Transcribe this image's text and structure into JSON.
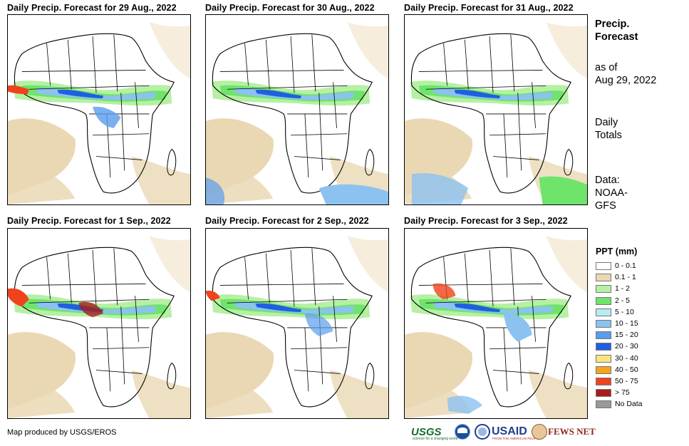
{
  "panels": [
    {
      "title": "Daily Precip. Forecast for 29 Aug., 2022"
    },
    {
      "title": "Daily Precip. Forecast for 30 Aug., 2022"
    },
    {
      "title": "Daily Precip. Forecast for 31 Aug., 2022"
    },
    {
      "title": "Daily Precip. Forecast for 1 Sep., 2022"
    },
    {
      "title": "Daily Precip. Forecast for 2 Sep., 2022"
    },
    {
      "title": "Daily Precip. Forecast for 3 Sep., 2022"
    }
  ],
  "side": {
    "title_line1": "Precip.",
    "title_line2": "Forecast",
    "asof_line1": "as of",
    "asof_line2": "Aug 29, 2022",
    "totals_line1": "Daily",
    "totals_line2": "Totals",
    "source_line1": "Data:",
    "source_line2": "NOAA-",
    "source_line3": "GFS"
  },
  "legend": {
    "title": "PPT (mm)",
    "items": [
      {
        "label": "0 - 0.1",
        "color": "#ffffff"
      },
      {
        "label": "0.1 - 1",
        "color": "#ead8b4"
      },
      {
        "label": "1 - 2",
        "color": "#b6f0a4"
      },
      {
        "label": "2 - 5",
        "color": "#6ee46a"
      },
      {
        "label": "5 - 10",
        "color": "#b4eef4"
      },
      {
        "label": "10 - 15",
        "color": "#8cc2f0"
      },
      {
        "label": "15 - 20",
        "color": "#5a9cec"
      },
      {
        "label": "20 - 30",
        "color": "#1f5fe0"
      },
      {
        "label": "30 - 40",
        "color": "#fbe37e"
      },
      {
        "label": "40 - 50",
        "color": "#f8a41a"
      },
      {
        "label": "50 - 75",
        "color": "#f0421c"
      },
      {
        "label": "> 75",
        "color": "#a81c1c"
      },
      {
        "label": "No Data",
        "color": "#999999"
      }
    ]
  },
  "credit": "Map produced by USGS/EROS",
  "logos": {
    "usgs": "USGS",
    "usgs_tagline": "science for a changing world",
    "noaa_icon": "noaa-logo-icon",
    "nasa_icon": "nasa-logo-icon",
    "usaid": "USAID",
    "usaid_tagline": "FROM THE AMERICAN PEOPLE",
    "fews": "FEWS NET"
  }
}
